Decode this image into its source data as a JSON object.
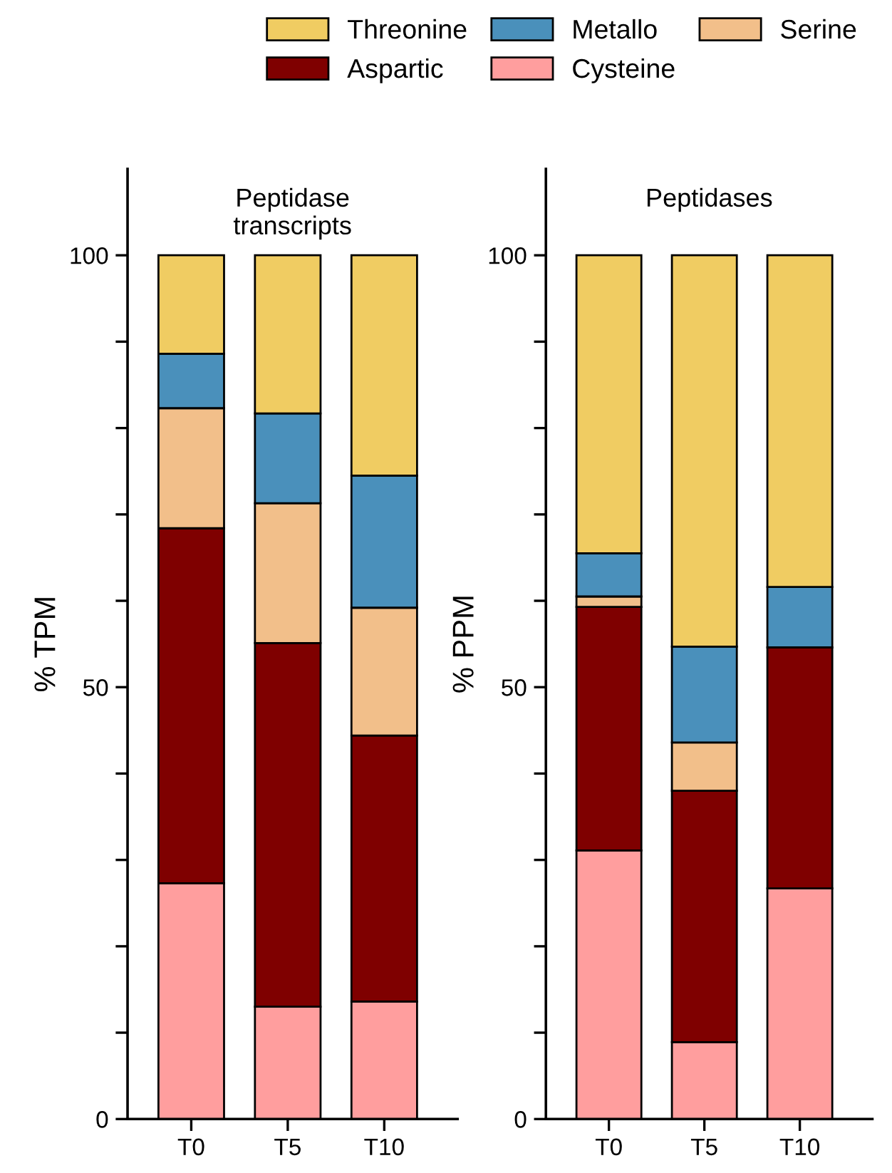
{
  "chart_data": [
    {
      "type": "bar",
      "stacked": true,
      "title": "Peptidase\ntranscripts",
      "ylabel": "% TPM",
      "categories": [
        "T0",
        "T5",
        "T10"
      ],
      "ylim": [
        0,
        110
      ],
      "yticks": [
        0,
        {
          "value": 10,
          "label": null
        },
        {
          "value": 20,
          "label": null
        },
        {
          "value": 30,
          "label": null
        },
        {
          "value": 40,
          "label": null
        },
        50,
        {
          "value": 60,
          "label": null
        },
        {
          "value": 70,
          "label": null
        },
        {
          "value": 80,
          "label": null
        },
        {
          "value": 90,
          "label": null
        },
        100
      ],
      "grid": false,
      "legend": "top",
      "series": [
        {
          "name": "Cysteine",
          "color": "#ff9e9e",
          "values": [
            27.3,
            13.0,
            13.6
          ]
        },
        {
          "name": "Aspartic",
          "color": "#7f0000",
          "values": [
            41.1,
            42.1,
            30.8
          ]
        },
        {
          "name": "Serine",
          "color": "#f2bf8a",
          "values": [
            13.9,
            16.2,
            14.8
          ]
        },
        {
          "name": "Metallo",
          "color": "#4a90bb",
          "values": [
            6.3,
            10.4,
            15.3
          ]
        },
        {
          "name": "Threonine",
          "color": "#f0cc62",
          "values": [
            11.4,
            18.3,
            25.5
          ]
        }
      ]
    },
    {
      "type": "bar",
      "stacked": true,
      "title": "Peptidases",
      "ylabel": "% PPM",
      "categories": [
        "T0",
        "T5",
        "T10"
      ],
      "ylim": [
        0,
        110
      ],
      "yticks": [
        0,
        {
          "value": 10,
          "label": null
        },
        {
          "value": 20,
          "label": null
        },
        {
          "value": 30,
          "label": null
        },
        {
          "value": 40,
          "label": null
        },
        50,
        {
          "value": 60,
          "label": null
        },
        {
          "value": 70,
          "label": null
        },
        {
          "value": 80,
          "label": null
        },
        {
          "value": 90,
          "label": null
        },
        100
      ],
      "grid": false,
      "series": [
        {
          "color": "#ff9e9e",
          "values": [
            31.1,
            8.9,
            26.7
          ]
        },
        {
          "color": "#7f0000",
          "values": [
            28.2,
            29.1,
            27.9
          ]
        },
        {
          "color": "#f2bf8a",
          "values": [
            1.2,
            5.6,
            0
          ]
        },
        {
          "color": "#4a90bb",
          "values": [
            5.0,
            11.1,
            7.0
          ]
        },
        {
          "color": "#f0cc62",
          "values": [
            34.5,
            45.3,
            38.4
          ]
        }
      ]
    }
  ]
}
